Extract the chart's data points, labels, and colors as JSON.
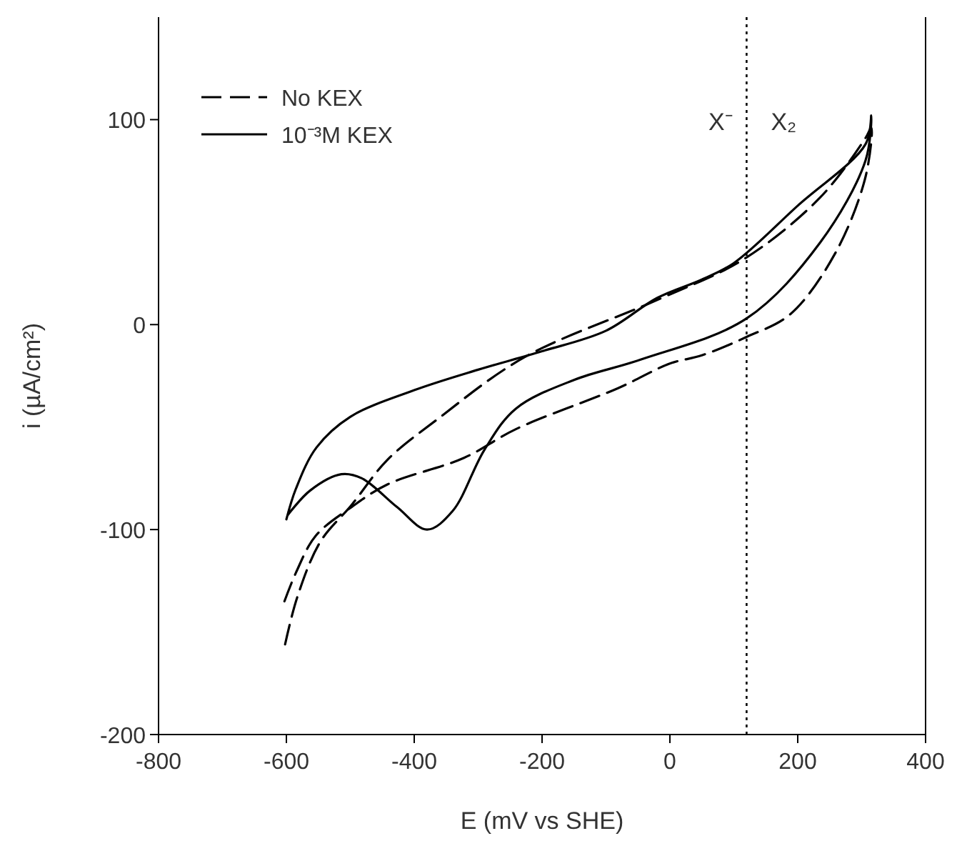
{
  "chart_data": {
    "type": "line",
    "xlabel": "E (mV vs SHE)",
    "ylabel": "i (µA/cm²)",
    "xlim": [
      -800,
      400
    ],
    "xticks": [
      -800,
      -600,
      -400,
      -200,
      0,
      200,
      400
    ],
    "ylim": [
      -200,
      150
    ],
    "yticks": [
      -200,
      -100,
      0,
      100
    ],
    "grid": false,
    "legend": "top left",
    "marker": "none",
    "ref_lines": [
      {
        "axis": "x",
        "value": 120,
        "line_style": "dotted",
        "color": "#000000"
      }
    ],
    "annotations": [
      "X⁻",
      "X₂"
    ],
    "series": [
      {
        "name": "No KEX",
        "color": "#000000",
        "line_style": "dashed",
        "x": [
          -602,
          -583,
          -547,
          -498,
          -442,
          -363,
          -228,
          -20,
          116,
          235,
          306,
          315,
          306,
          259,
          188,
          120,
          50,
          0,
          -81,
          -241,
          -322,
          -442,
          -498,
          -554,
          -585,
          -603
        ],
        "values": [
          -156,
          -133,
          -106,
          -88,
          -66,
          -46,
          -16,
          12,
          32,
          62,
          91,
          96,
          72,
          35,
          5,
          -6,
          -15,
          -19,
          -31,
          -51,
          -65,
          -78,
          -89,
          -103,
          -121,
          -135
        ]
      },
      {
        "name": "10⁻³M KEX",
        "color": "#000000",
        "line_style": "solid",
        "x": [
          -600,
          -585,
          -553,
          -500,
          -400,
          -300,
          -200,
          -100,
          -20,
          50,
          100,
          200,
          306,
          315,
          306,
          235,
          120,
          -45,
          -150,
          -241,
          -290,
          -340,
          -380,
          -427,
          -482,
          -514,
          -563,
          -598
        ],
        "values": [
          -95,
          -80,
          -60,
          -45,
          -32,
          -22,
          -13,
          -3,
          13,
          22,
          30,
          58,
          88,
          102,
          80,
          40,
          3,
          -17,
          -27,
          -41,
          -61,
          -91,
          -100,
          -89,
          -75,
          -73,
          -81,
          -93
        ]
      }
    ]
  }
}
